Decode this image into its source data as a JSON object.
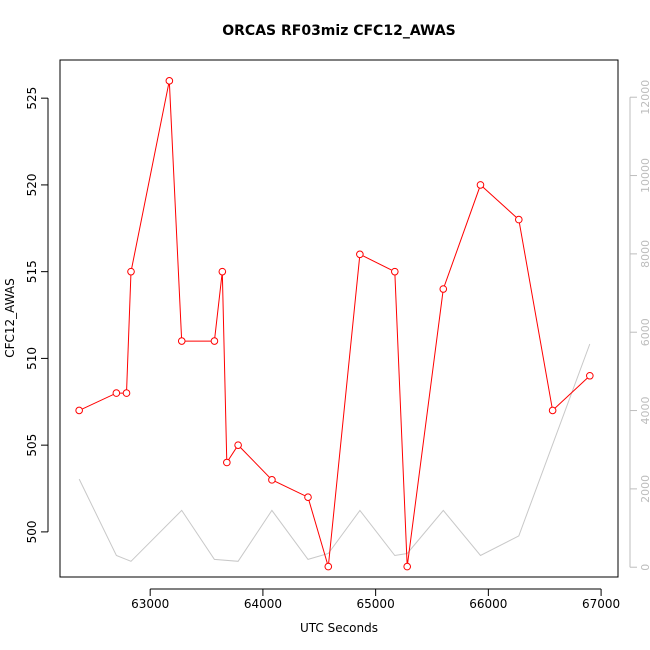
{
  "chart_data": {
    "type": "line",
    "title": "ORCAS RF03miz CFC12_AWAS",
    "xlabel": "UTC Seconds",
    "ylabel": "CFC12_AWAS",
    "xlim": [
      62200,
      67150
    ],
    "ylim": [
      497.4,
      527.2
    ],
    "y2lim": [
      -250,
      12950
    ],
    "xticks": [
      63000,
      64000,
      65000,
      66000,
      67000
    ],
    "yticks": [
      500,
      505,
      510,
      515,
      520,
      525
    ],
    "y2ticks": [
      0,
      2000,
      4000,
      6000,
      8000,
      10000,
      12000
    ],
    "grid": false,
    "series": [
      {
        "axis": "left",
        "color": "#ff0000",
        "marker": "open-circle",
        "x": [
          62370,
          62700,
          62790,
          62830,
          63170,
          63280,
          63570,
          63640,
          63680,
          63780,
          64080,
          64400,
          64580,
          64860,
          65170,
          65280,
          65600,
          65930,
          66270,
          66570,
          66900
        ],
        "y": [
          507,
          508,
          508,
          515,
          526,
          511,
          511,
          515,
          504,
          505,
          503,
          502,
          498,
          516,
          515,
          498,
          514,
          520,
          518,
          507,
          509
        ]
      },
      {
        "axis": "right",
        "color": "#c8c8c8",
        "marker": "none",
        "x": [
          62370,
          62700,
          62830,
          63280,
          63570,
          63780,
          64080,
          64400,
          64580,
          64860,
          65170,
          65280,
          65600,
          65930,
          66270,
          66900
        ],
        "y": [
          2250,
          300,
          150,
          1450,
          200,
          150,
          1450,
          200,
          350,
          1450,
          300,
          350,
          1450,
          300,
          800,
          5700
        ]
      }
    ]
  }
}
